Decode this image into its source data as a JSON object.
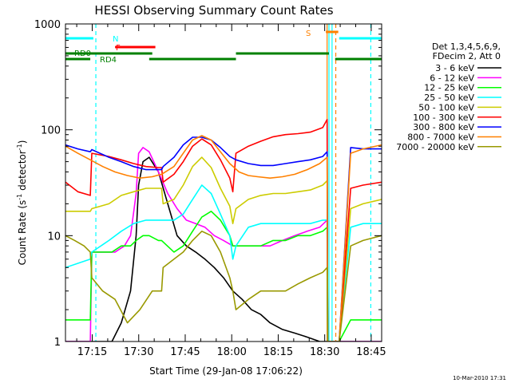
{
  "chart_data": {
    "type": "line",
    "title": "HESSI Observing Summary Count Rates",
    "xlabel": "Start Time (29-Jan-08 17:06:22)",
    "ylabel_main": "Count Rate (s",
    "ylabel_sup1": "-1",
    "ylabel_mid": " detector",
    "ylabel_sup2": "-1",
    "ylabel_end": ")",
    "yscale": "log",
    "ylim": [
      1,
      1000
    ],
    "xlim_minutes": [
      0,
      102
    ],
    "x_ticks": [
      {
        "label": "17:15",
        "min": 8.63
      },
      {
        "label": "17:30",
        "min": 23.63
      },
      {
        "label": "17:45",
        "min": 38.63
      },
      {
        "label": "18:00",
        "min": 53.63
      },
      {
        "label": "18:15",
        "min": 68.63
      },
      {
        "label": "18:30",
        "min": 83.63
      },
      {
        "label": "18:45",
        "min": 98.63
      }
    ],
    "y_ticks": [
      {
        "label": "1",
        "v": 1
      },
      {
        "label": "10",
        "v": 10
      },
      {
        "label": "100",
        "v": 100
      },
      {
        "label": "1000",
        "v": 1000
      }
    ],
    "legend_header": [
      "Det 1,3,4,5,6,9,",
      "FDecim 2, Att 0"
    ],
    "legend_placement": "right",
    "series": [
      {
        "name": "3 - 6 keV",
        "color": "#000000",
        "x": [
          0,
          8,
          8.5,
          15,
          18,
          21,
          22.8,
          23.6,
          25,
          27,
          30,
          33,
          36,
          39,
          42,
          45,
          48,
          51,
          54,
          57,
          60,
          63,
          66,
          70,
          74,
          78,
          82,
          84.4,
          84.6,
          88,
          88.3,
          94,
          102
        ],
        "y": [
          1,
          1,
          1,
          1,
          1.5,
          3,
          10,
          30,
          50,
          55,
          40,
          20,
          10,
          8,
          7,
          6,
          5,
          4,
          3,
          2.5,
          2,
          1.8,
          1.5,
          1.3,
          1.2,
          1.1,
          1,
          1,
          1,
          1,
          1,
          1,
          1
        ]
      },
      {
        "name": "6 - 12 keV",
        "color": "#ff00ff",
        "x": [
          0,
          8,
          8.5,
          16,
          19,
          21,
          22.8,
          23.6,
          25,
          27,
          30,
          33,
          36,
          39,
          42,
          45,
          48,
          51,
          54,
          56,
          57,
          59,
          62,
          66,
          70,
          74,
          78,
          82,
          84.4,
          84.6,
          88,
          88.3,
          94,
          102
        ],
        "y": [
          1,
          1,
          7,
          7,
          8,
          10,
          25,
          60,
          68,
          62,
          40,
          25,
          18,
          14,
          13,
          12,
          10,
          9,
          8,
          8,
          8,
          8,
          8,
          8,
          9,
          10,
          11,
          12,
          14,
          1,
          1,
          1,
          1,
          1
        ]
      },
      {
        "name": "12 - 25 keV",
        "color": "#00ff00",
        "x": [
          0,
          8,
          8.5,
          15,
          18,
          21,
          22.8,
          25,
          27,
          30,
          31,
          35,
          38,
          41,
          44,
          47,
          50,
          53,
          54,
          55,
          59,
          63,
          67,
          71,
          75,
          79,
          83,
          84.4,
          84.6,
          88,
          88.3,
          92,
          102
        ],
        "y": [
          1.6,
          1.6,
          7,
          7,
          8,
          8,
          9,
          10,
          10,
          9,
          9,
          7,
          8,
          11,
          15,
          17,
          14,
          10,
          8,
          8,
          8,
          8,
          9,
          9,
          10,
          10,
          11,
          12,
          1,
          1,
          1,
          1.6,
          1.6
        ]
      },
      {
        "name": "25 - 50 keV",
        "color": "#00ffff",
        "x": [
          0,
          8,
          8.5,
          14,
          18,
          22,
          26,
          30,
          31,
          31.5,
          35,
          38,
          41,
          44,
          47,
          50,
          53,
          54,
          55,
          59,
          63,
          67,
          71,
          75,
          79,
          83,
          84.4,
          84.6,
          88,
          88.3,
          92,
          96,
          102
        ],
        "y": [
          5,
          6,
          7,
          9,
          11,
          13,
          14,
          14,
          14,
          14,
          14,
          16,
          22,
          30,
          25,
          16,
          10,
          6,
          8,
          12,
          13,
          13,
          13,
          13,
          13,
          14,
          14,
          1,
          1,
          1,
          12,
          13,
          13
        ]
      },
      {
        "name": "50 - 100 keV",
        "color": "#cccc00",
        "x": [
          0,
          4,
          8,
          8.5,
          14,
          18,
          22,
          26,
          30,
          31,
          31.5,
          35,
          38,
          41,
          44,
          47,
          50,
          53,
          54,
          55,
          59,
          63,
          67,
          71,
          75,
          79,
          83,
          84.4,
          84.6,
          88,
          88.3,
          92,
          96,
          102
        ],
        "y": [
          17,
          17,
          17,
          18,
          20,
          24,
          26,
          28,
          28,
          28,
          20,
          22,
          30,
          45,
          55,
          44,
          28,
          19,
          13,
          18,
          22,
          24,
          25,
          25,
          26,
          27,
          30,
          33,
          1,
          1,
          1,
          18,
          20,
          22
        ]
      },
      {
        "name": "100 - 300 keV",
        "color": "#ff0000",
        "x": [
          0,
          4,
          8,
          8.5,
          14,
          18,
          22,
          26,
          30,
          31,
          31.5,
          35,
          38,
          41,
          44,
          47,
          50,
          53,
          54,
          55,
          59,
          63,
          67,
          71,
          75,
          79,
          83,
          84.4,
          84.6,
          88,
          88.3,
          92,
          96,
          102
        ],
        "y": [
          32,
          26,
          24,
          60,
          56,
          52,
          48,
          45,
          44,
          44,
          32,
          38,
          50,
          70,
          82,
          72,
          52,
          35,
          26,
          60,
          70,
          78,
          86,
          90,
          92,
          95,
          105,
          125,
          1,
          1,
          1,
          28,
          30,
          32
        ]
      },
      {
        "name": "300 - 800 keV",
        "color": "#0000ff",
        "x": [
          0,
          4,
          8,
          8.5,
          14,
          18,
          22,
          26,
          30,
          31,
          31.5,
          35,
          38,
          41,
          44,
          47,
          50,
          53,
          54,
          55,
          59,
          63,
          67,
          71,
          75,
          79,
          83,
          84.4,
          84.6,
          88,
          88.3,
          92,
          96,
          102
        ],
        "y": [
          72,
          66,
          62,
          65,
          55,
          50,
          45,
          42,
          42,
          42,
          45,
          55,
          72,
          85,
          85,
          80,
          68,
          56,
          54,
          52,
          48,
          46,
          46,
          48,
          50,
          52,
          56,
          62,
          1,
          1,
          1,
          68,
          66,
          66
        ]
      },
      {
        "name": "800 - 7000 keV",
        "color": "#ff8000",
        "x": [
          0,
          4,
          8,
          12,
          16,
          20,
          24,
          28,
          31,
          35,
          38,
          41,
          44,
          47,
          50,
          53,
          56,
          59,
          62,
          66,
          70,
          74,
          78,
          82,
          84.4,
          84.6,
          88,
          88.3,
          92,
          96,
          102
        ],
        "y": [
          70,
          60,
          52,
          45,
          40,
          37,
          35,
          36,
          38,
          45,
          60,
          80,
          88,
          80,
          62,
          48,
          40,
          37,
          36,
          35,
          36,
          38,
          42,
          48,
          55,
          1,
          1,
          1,
          60,
          66,
          72
        ]
      },
      {
        "name": "7000 - 20000 keV",
        "color": "#999900",
        "x": [
          0,
          3,
          6,
          8,
          8.5,
          12,
          16,
          20,
          24,
          28,
          31,
          31.5,
          35,
          38,
          41,
          44,
          47,
          50,
          53,
          54,
          55,
          59,
          63,
          67,
          71,
          75,
          79,
          83,
          84.4,
          84.6,
          88,
          88.3,
          92,
          96,
          102
        ],
        "y": [
          10,
          9,
          8,
          7,
          4,
          3,
          2.5,
          1.5,
          2,
          3,
          3,
          5,
          6,
          7,
          9,
          11,
          10,
          7,
          4,
          3,
          2,
          2.5,
          3,
          3,
          3,
          3.5,
          4,
          4.5,
          5,
          1,
          1,
          1,
          8,
          9,
          10
        ]
      }
    ],
    "attenuator_flags": [
      {
        "label": "N",
        "color": "#00ffff",
        "level": "top",
        "segments": [
          [
            0,
            9
          ],
          [
            88.3,
            102
          ]
        ]
      },
      {
        "label": "S",
        "color": "#ff8000",
        "level": "top2",
        "segments": [
          [
            84,
            88
          ]
        ]
      },
      {
        "label": "F",
        "color": "#ff0000",
        "level": "f",
        "segments": [
          [
            16,
            29
          ]
        ]
      },
      {
        "label": "RD0",
        "color": "#008000",
        "level": "rd0",
        "segments": [
          [
            0,
            28
          ],
          [
            55,
            85
          ]
        ]
      },
      {
        "label": "RD4",
        "color": "#008000",
        "level": "rd4",
        "segments": [
          [
            0,
            8
          ],
          [
            27,
            55
          ],
          [
            87,
            102
          ]
        ]
      }
    ],
    "vertical_lines": [
      {
        "min": 9.8,
        "color": "#00ffff",
        "style": "dashed"
      },
      {
        "min": 85,
        "color": "#00ffff",
        "style": "solid"
      },
      {
        "min": 86,
        "color": "#00ffff",
        "style": "solid"
      },
      {
        "min": 87.2,
        "color": "#ff8000",
        "style": "dashed"
      },
      {
        "min": 98.5,
        "color": "#00ffff",
        "style": "dashed"
      },
      {
        "min": 84.4,
        "color": "#ff8000",
        "style": "solid"
      }
    ]
  },
  "footer_date": "10-Mar-2010 17:31"
}
